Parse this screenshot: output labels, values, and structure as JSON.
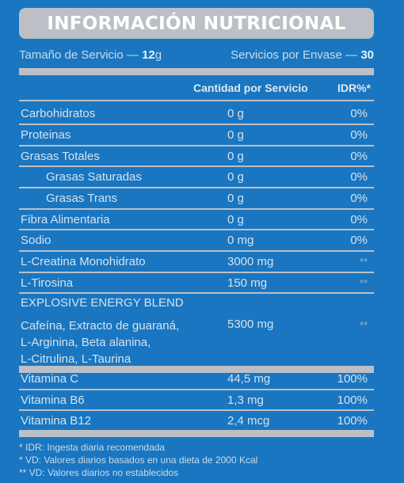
{
  "title": "INFORMACIÓN NUTRICIONAL",
  "serving": {
    "size_label": "Tamaño de Servicio — ",
    "size_value": "12",
    "size_unit": "g",
    "count_label": "Servicios por Envase — ",
    "count_value": "30"
  },
  "headers": {
    "amount": "Cantidad por Servicio",
    "idr": "IDR%*"
  },
  "rows": [
    {
      "name": "Carbohidratos",
      "amount": "0 g",
      "pct": "0%"
    },
    {
      "name": "Proteinas",
      "amount": "0 g",
      "pct": "0%"
    },
    {
      "name": "Grasas Totales",
      "amount": "0 g",
      "pct": "0%"
    },
    {
      "name": "Grasas Saturadas",
      "amount": "0 g",
      "pct": "0%"
    },
    {
      "name": "Grasas Trans",
      "amount": "0 g",
      "pct": "0%"
    },
    {
      "name": "Fibra Alimentaria",
      "amount": "0 g",
      "pct": "0%"
    },
    {
      "name": "Sodio",
      "amount": "0 mg",
      "pct": "0%"
    },
    {
      "name": "L-Creatina Monohidrato",
      "amount": "3000 mg",
      "pct": "**"
    },
    {
      "name": "L-Tirosina",
      "amount": "150 mg",
      "pct": "**"
    }
  ],
  "blend": {
    "title": "EXPLOSIVE ENERGY BLEND",
    "line1": "Cafeína, Extracto de guaraná,",
    "line2": "L-Arginina, Beta alanina,",
    "line3": "L-Citrulina, L-Taurina",
    "amount": "5300 mg",
    "pct": "**"
  },
  "vitamins": [
    {
      "name": "Vitamina C",
      "amount": "44,5 mg",
      "pct": "100%"
    },
    {
      "name": "Vitamina B6",
      "amount": "1,3 mg",
      "pct": "100%"
    },
    {
      "name": "Vitamina B12",
      "amount": "2,4 mcg",
      "pct": "100%"
    }
  ],
  "footnotes": [
    "* IDR: Ingesta diaria recomendada",
    "* VD: Valores diarios basados en una dieta de 2000 Kcal",
    "** VD: Valores diarios no establecidos"
  ],
  "colors": {
    "background": "#1a76c0",
    "rules": "#bcc0c6",
    "text": "#d4e3ef"
  }
}
